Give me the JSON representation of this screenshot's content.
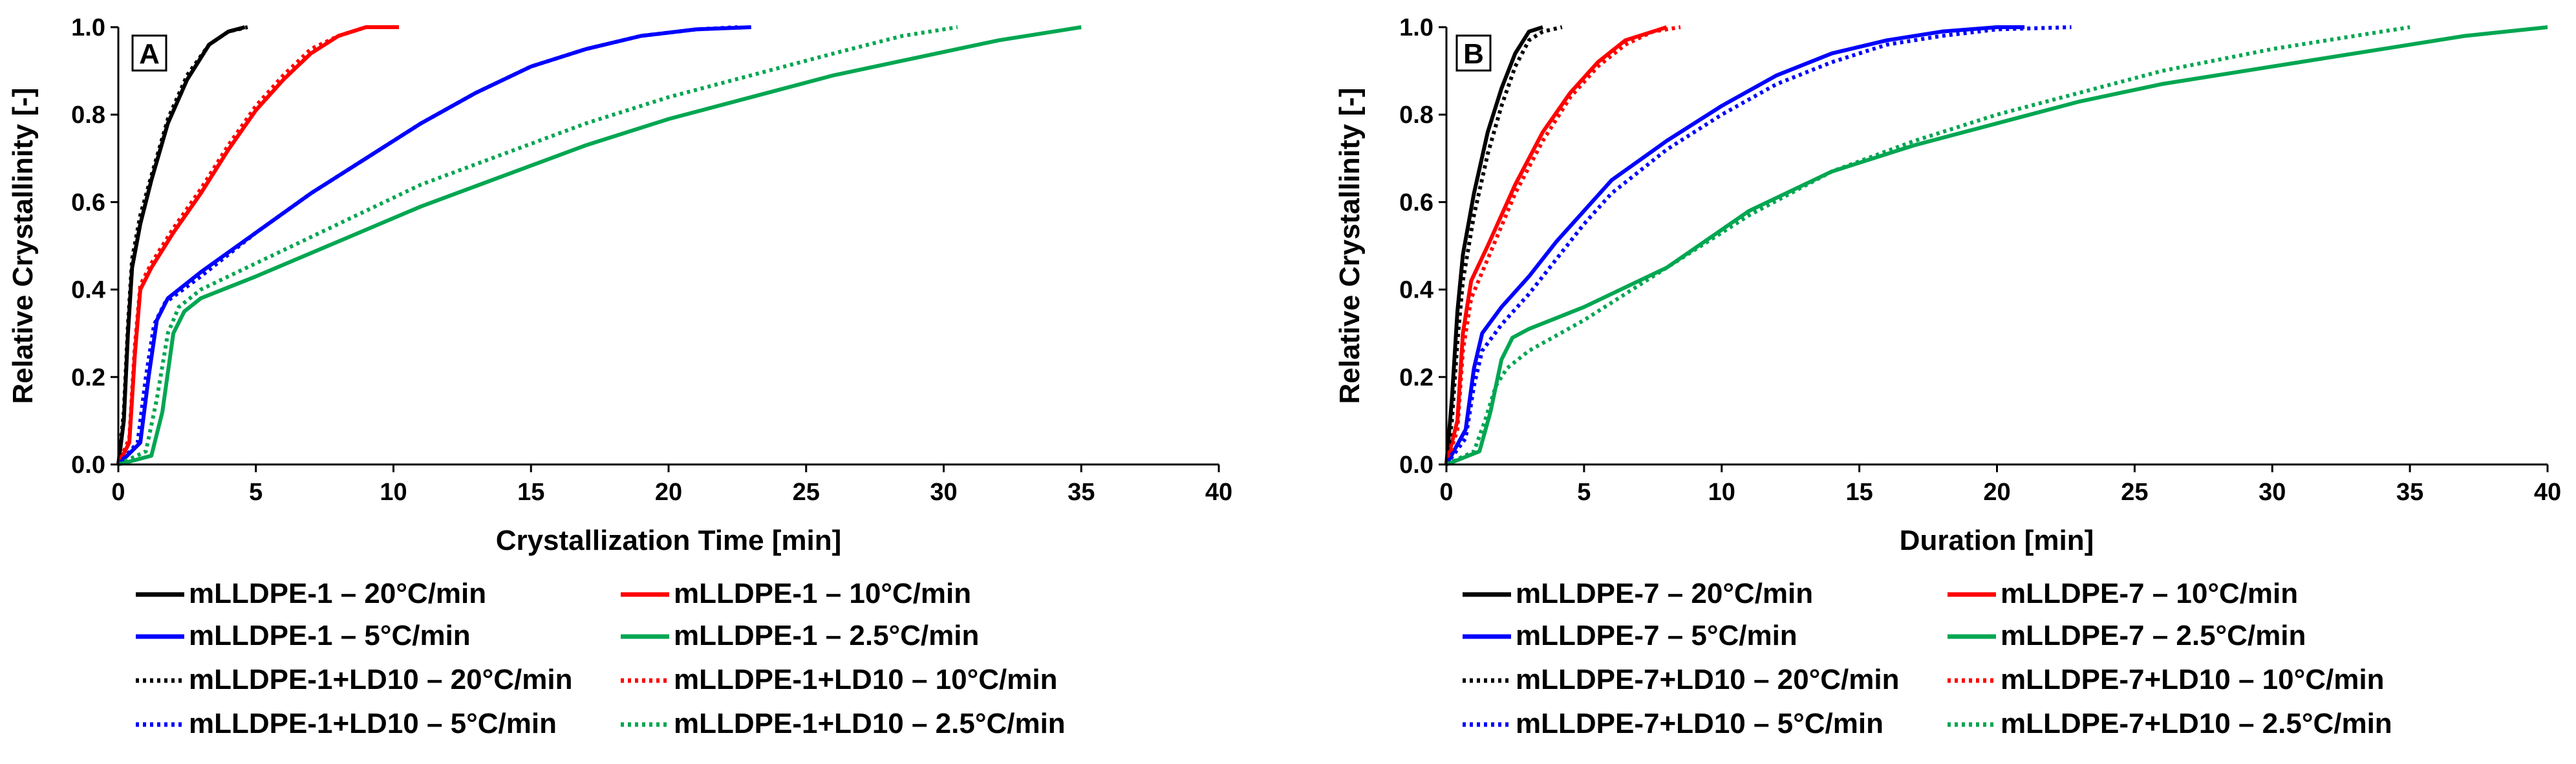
{
  "chart_data": [
    {
      "type": "line",
      "panel_label": "A",
      "title": "",
      "xlabel": "Crystallization Time [min]",
      "ylabel": "Relative Crystallinity [-]",
      "xlim": [
        0,
        40
      ],
      "ylim": [
        0,
        1
      ],
      "xticks": [
        "0",
        "5",
        "10",
        "15",
        "20",
        "25",
        "30",
        "35",
        "40"
      ],
      "yticks": [
        "0.0",
        "0.2",
        "0.4",
        "0.6",
        "0.8",
        "1.0"
      ],
      "grid": false,
      "legend_position": "bottom",
      "series": [
        {
          "name": "mLLDPE-1 – 20°C/min",
          "color": "#000000",
          "style": "solid",
          "x": [
            0,
            0.2,
            0.35,
            0.5,
            0.8,
            1.2,
            1.8,
            2.5,
            3.3,
            4.0,
            4.6
          ],
          "y": [
            0,
            0.1,
            0.3,
            0.45,
            0.55,
            0.65,
            0.78,
            0.88,
            0.96,
            0.99,
            1.0
          ]
        },
        {
          "name": "mLLDPE-1 – 10°C/min",
          "color": "#ff0000",
          "style": "solid",
          "x": [
            0,
            0.4,
            0.6,
            0.8,
            1.2,
            2,
            3,
            4,
            5,
            6,
            7,
            8,
            9,
            10.2
          ],
          "y": [
            0,
            0.05,
            0.25,
            0.4,
            0.45,
            0.53,
            0.62,
            0.72,
            0.81,
            0.88,
            0.94,
            0.98,
            1.0,
            1.0
          ]
        },
        {
          "name": "mLLDPE-1 – 5°C/min",
          "color": "#0000ff",
          "style": "solid",
          "x": [
            0,
            0.8,
            1.1,
            1.4,
            1.8,
            3,
            5,
            7,
            9,
            11,
            13,
            15,
            17,
            19,
            21,
            23
          ],
          "y": [
            0,
            0.05,
            0.2,
            0.33,
            0.38,
            0.44,
            0.53,
            0.62,
            0.7,
            0.78,
            0.85,
            0.91,
            0.95,
            0.98,
            0.995,
            1.0
          ]
        },
        {
          "name": "mLLDPE-1 – 2.5°C/min",
          "color": "#00a651",
          "style": "solid",
          "x": [
            0,
            1.2,
            1.6,
            2.0,
            2.4,
            3,
            5,
            8,
            11,
            14,
            17,
            20,
            23,
            26,
            29,
            32,
            35
          ],
          "y": [
            0,
            0.02,
            0.12,
            0.3,
            0.35,
            0.38,
            0.43,
            0.51,
            0.59,
            0.66,
            0.73,
            0.79,
            0.84,
            0.89,
            0.93,
            0.97,
            1.0
          ]
        },
        {
          "name": "mLLDPE-1+LD10 – 20°C/min",
          "color": "#000000",
          "style": "dotted",
          "x": [
            0,
            0.2,
            0.35,
            0.5,
            0.8,
            1.2,
            1.8,
            2.5,
            3.3,
            4.0,
            4.7
          ],
          "y": [
            0,
            0.12,
            0.32,
            0.47,
            0.57,
            0.66,
            0.79,
            0.89,
            0.96,
            0.99,
            1.0
          ]
        },
        {
          "name": "mLLDPE-1+LD10 – 10°C/min",
          "color": "#ff0000",
          "style": "dotted",
          "x": [
            0,
            0.4,
            0.6,
            0.8,
            1.2,
            2,
            3,
            4,
            5,
            6,
            7,
            8,
            9,
            10
          ],
          "y": [
            0,
            0.06,
            0.27,
            0.41,
            0.46,
            0.54,
            0.63,
            0.73,
            0.82,
            0.89,
            0.95,
            0.98,
            1.0,
            1.0
          ]
        },
        {
          "name": "mLLDPE-1+LD10 – 5°C/min",
          "color": "#0000ff",
          "style": "dotted",
          "x": [
            0,
            0.7,
            1.0,
            1.3,
            1.7,
            3,
            5,
            7,
            9,
            11,
            13,
            15,
            17,
            19,
            21,
            22.5
          ],
          "y": [
            0,
            0.05,
            0.2,
            0.32,
            0.37,
            0.43,
            0.53,
            0.62,
            0.7,
            0.78,
            0.85,
            0.91,
            0.95,
            0.98,
            0.995,
            1.0
          ]
        },
        {
          "name": "mLLDPE-1+LD10 – 2.5°C/min",
          "color": "#00a651",
          "style": "dotted",
          "x": [
            0,
            1.0,
            1.4,
            1.8,
            2.2,
            3,
            5,
            8,
            11,
            14,
            17,
            20,
            23,
            26,
            28.5,
            30.5
          ],
          "y": [
            0,
            0.03,
            0.15,
            0.3,
            0.36,
            0.4,
            0.46,
            0.55,
            0.64,
            0.71,
            0.78,
            0.84,
            0.89,
            0.94,
            0.98,
            1.0
          ]
        }
      ]
    },
    {
      "type": "line",
      "panel_label": "B",
      "title": "",
      "xlabel": "Duration [min]",
      "ylabel": "Relative Crystallinity [-]",
      "xlim": [
        0,
        40
      ],
      "ylim": [
        0,
        1
      ],
      "xticks": [
        "0",
        "5",
        "10",
        "15",
        "20",
        "25",
        "30",
        "35",
        "40"
      ],
      "yticks": [
        "0.0",
        "0.2",
        "0.4",
        "0.6",
        "0.8",
        "1.0"
      ],
      "grid": false,
      "legend_position": "bottom",
      "series": [
        {
          "name": "mLLDPE-7 – 20°C/min",
          "color": "#000000",
          "style": "solid",
          "x": [
            0,
            0.2,
            0.4,
            0.6,
            1.0,
            1.5,
            2.0,
            2.5,
            3.0,
            3.5
          ],
          "y": [
            0,
            0.15,
            0.35,
            0.48,
            0.62,
            0.76,
            0.86,
            0.94,
            0.99,
            1.0
          ]
        },
        {
          "name": "mLLDPE-7 – 10°C/min",
          "color": "#ff0000",
          "style": "solid",
          "x": [
            0,
            0.4,
            0.6,
            0.9,
            1.5,
            2.5,
            3.5,
            4.5,
            5.5,
            6.5,
            7.5,
            8.0
          ],
          "y": [
            0,
            0.1,
            0.3,
            0.42,
            0.5,
            0.64,
            0.76,
            0.85,
            0.92,
            0.97,
            0.99,
            1.0
          ]
        },
        {
          "name": "mLLDPE-7 – 5°C/min",
          "color": "#0000ff",
          "style": "solid",
          "x": [
            0,
            0.7,
            1.0,
            1.3,
            2,
            3,
            4,
            5,
            6,
            8,
            10,
            12,
            14,
            16,
            18,
            20,
            21
          ],
          "y": [
            0,
            0.08,
            0.22,
            0.3,
            0.36,
            0.43,
            0.51,
            0.58,
            0.65,
            0.74,
            0.82,
            0.89,
            0.94,
            0.97,
            0.99,
            1.0,
            1.0
          ]
        },
        {
          "name": "mLLDPE-7 – 2.5°C/min",
          "color": "#00a651",
          "style": "solid",
          "x": [
            0,
            1.2,
            1.6,
            2.0,
            2.4,
            3,
            5,
            8,
            11,
            14,
            17,
            20,
            23,
            26,
            30,
            34,
            37,
            40
          ],
          "y": [
            0,
            0.03,
            0.12,
            0.24,
            0.29,
            0.31,
            0.36,
            0.45,
            0.58,
            0.67,
            0.73,
            0.78,
            0.83,
            0.87,
            0.91,
            0.95,
            0.98,
            1.0
          ]
        },
        {
          "name": "mLLDPE-7+LD10 – 20°C/min",
          "color": "#000000",
          "style": "dotted",
          "x": [
            0,
            0.2,
            0.4,
            0.6,
            1.0,
            1.5,
            2.0,
            2.5,
            3.0,
            3.5,
            4.2
          ],
          "y": [
            0,
            0.1,
            0.28,
            0.42,
            0.57,
            0.71,
            0.82,
            0.91,
            0.97,
            0.99,
            1.0
          ]
        },
        {
          "name": "mLLDPE-7+LD10 – 10°C/min",
          "color": "#ff0000",
          "style": "dotted",
          "x": [
            0,
            0.4,
            0.6,
            0.9,
            1.5,
            2.5,
            3.5,
            4.5,
            5.5,
            6.5,
            7.5,
            8.5
          ],
          "y": [
            0,
            0.08,
            0.26,
            0.38,
            0.47,
            0.62,
            0.74,
            0.84,
            0.91,
            0.96,
            0.99,
            1.0
          ]
        },
        {
          "name": "mLLDPE-7+LD10 – 5°C/min",
          "color": "#0000ff",
          "style": "dotted",
          "x": [
            0,
            0.7,
            1.0,
            1.3,
            2,
            3,
            4,
            5,
            6,
            8,
            10,
            12,
            14,
            16,
            18,
            20,
            22.7
          ],
          "y": [
            0,
            0.06,
            0.18,
            0.26,
            0.32,
            0.39,
            0.47,
            0.55,
            0.62,
            0.72,
            0.8,
            0.87,
            0.92,
            0.96,
            0.98,
            0.995,
            1.0
          ]
        },
        {
          "name": "mLLDPE-7+LD10 – 2.5°C/min",
          "color": "#00a651",
          "style": "dotted",
          "x": [
            0,
            1.0,
            1.4,
            1.8,
            2.2,
            3,
            5,
            8,
            11,
            14,
            17,
            20,
            23,
            26,
            30,
            33,
            35
          ],
          "y": [
            0,
            0.03,
            0.1,
            0.18,
            0.22,
            0.26,
            0.33,
            0.45,
            0.57,
            0.67,
            0.74,
            0.8,
            0.85,
            0.9,
            0.95,
            0.98,
            1.0
          ]
        }
      ]
    }
  ]
}
